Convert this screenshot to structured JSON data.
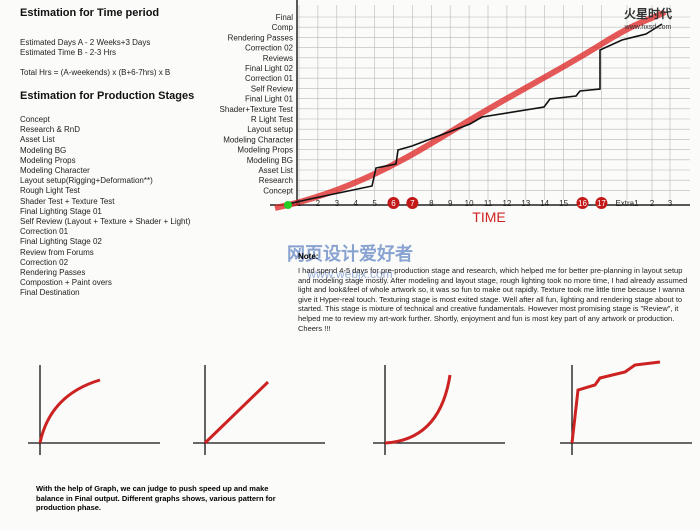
{
  "left": {
    "title_time": "Estimation for Time period",
    "lines": [
      "Estimated Days A - 2 Weeks+3 Days",
      "Estimated Time B - 2-3 Hrs",
      "Total Hrs = (A-weekends) x (B+6-7hrs) x B"
    ],
    "title_stages": "Estimation for Production Stages",
    "stages": [
      "Concept",
      "Research & RnD",
      "Asset List",
      "Modeling BG",
      "Modeling Props",
      "Modeling Character",
      "Layout setup(Rigging+Deformation**)",
      "Rough Light Test",
      "Shader Test + Texture Test",
      "Final Lighting Stage 01",
      "Self Review (Layout + Texture + Shader + Light)",
      "Correction 01",
      "Final Lighting Stage 02",
      "Review from Forums",
      "Correction 02",
      "Rendering Passes",
      "Compostion + Paint overs",
      "Final Destination"
    ]
  },
  "schedule": {
    "y_labels": [
      "Final",
      "Comp",
      "Rendering Passes",
      "Correction 02",
      "Reviews",
      "Final Light 02",
      "Correction 01",
      "Self Review",
      "Final Light 01",
      "Shader+Texture Test",
      "R Light Test",
      "Layout setup",
      "Modeling Character",
      "Modeling Props",
      "Modeling BG",
      "Asset List",
      "Research",
      "Concept"
    ],
    "x_labels": [
      "1",
      "2",
      "3",
      "4",
      "5",
      "6",
      "7",
      "8",
      "9",
      "10",
      "11",
      "12",
      "13",
      "14",
      "15",
      "16",
      "17",
      "Extra1",
      "2",
      "3"
    ],
    "axis_title": "TIME"
  },
  "logo": {
    "name": "火星时代",
    "url": "www.hxsd.com"
  },
  "watermark": {
    "name": "网页设计爱好者",
    "url": "www.webjx.com"
  },
  "note": {
    "title": "Note:",
    "text": "I had spend 4-5 days for pre-production stage and research, which helped me for better pre-planning in layout setup and modeling stage mostly. After modeling and layout stage, rough lighting took no more time, I had already assumed light and look&feel of whole artwork so, it was so fun to make out rapidly. Texture took me little time because I wanna give it Hyper-real touch. Texturing stage is most exited stage. Well after all fun, lighting and rendering stage about to started. This stage is mixture of technical and creative fundamentals. However most promising stage is \"Review\", it helped me to review my art-work further. Shortly, enjoyment and fun is most key part of any artwork or production. Cheers !!!"
  },
  "caption": "With the help of Graph, we can judge to push speed up and make balance in Final output. Different graphs shows, various pattern for production phase."
}
